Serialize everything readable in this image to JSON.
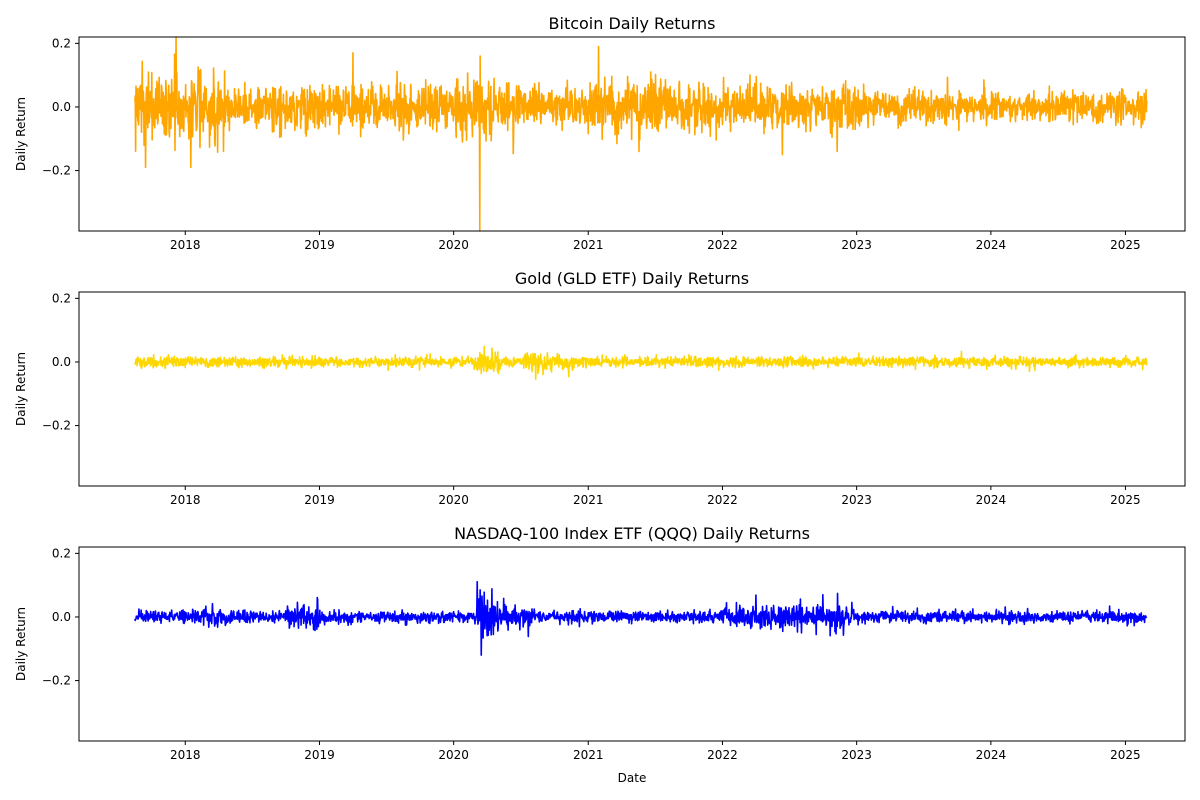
{
  "chart_data": [
    {
      "type": "line",
      "title": "Bitcoin Daily Returns",
      "xlabel": "",
      "ylabel": "Daily Return",
      "xlim": [
        "2017-03-18",
        "2025-06-12"
      ],
      "ylim": [
        -0.39,
        0.22
      ],
      "xticks": [
        "2018",
        "2019",
        "2020",
        "2021",
        "2022",
        "2023",
        "2024",
        "2025"
      ],
      "yticks": [
        "0.2",
        "0.0",
        "−0.2"
      ],
      "x_range": [
        "2017-08-17",
        "2025-02-28"
      ],
      "color": "#FFA500",
      "series": [
        {
          "sample_x": [
            "2017-09-15",
            "2017-12-07",
            "2018-01-16",
            "2018-02-06",
            "2019-04-02",
            "2020-03-12",
            "2020-03-13",
            "2021-01-29",
            "2021-05-19",
            "2022-06-13",
            "2022-11-09"
          ],
          "values": [
            -0.19,
            0.22,
            -0.19,
            0.11,
            0.17,
            -0.39,
            0.16,
            0.19,
            -0.14,
            -0.15,
            -0.14
          ]
        }
      ]
    },
    {
      "type": "line",
      "title": "Gold (GLD ETF) Daily Returns",
      "xlabel": "",
      "ylabel": "Daily Return",
      "xlim": [
        "2017-03-18",
        "2025-06-12"
      ],
      "ylim": [
        -0.39,
        0.22
      ],
      "xticks": [
        "2018",
        "2019",
        "2020",
        "2021",
        "2022",
        "2023",
        "2024",
        "2025"
      ],
      "yticks": [
        "0.2",
        "0.0",
        "−0.2"
      ],
      "x_range": [
        "2017-08-17",
        "2025-02-28"
      ],
      "color": "#FFD700",
      "series": [
        {
          "sample_x": [
            "2020-03-16",
            "2020-03-24",
            "2020-08-11",
            "2020-11-09",
            "2023-10-13",
            "2024-04-15"
          ],
          "values": [
            -0.036,
            0.049,
            -0.054,
            -0.046,
            0.033,
            -0.03
          ]
        }
      ]
    },
    {
      "type": "line",
      "title": "NASDAQ-100 Index ETF (QQQ) Daily Returns",
      "xlabel": "Date",
      "ylabel": "Daily Return",
      "xlim": [
        "2017-03-18",
        "2025-06-12"
      ],
      "ylim": [
        -0.39,
        0.22
      ],
      "xticks": [
        "2018",
        "2019",
        "2020",
        "2021",
        "2022",
        "2023",
        "2024",
        "2025"
      ],
      "yticks": [
        "0.2",
        "0.0",
        "−0.2"
      ],
      "x_range": [
        "2017-08-17",
        "2025-02-28"
      ],
      "color": "#0000FF",
      "series": [
        {
          "sample_x": [
            "2018-12-26",
            "2020-03-13",
            "2020-03-16",
            "2020-03-24",
            "2022-11-10",
            "2022-09-13"
          ],
          "values": [
            0.061,
            0.085,
            -0.12,
            0.078,
            0.074,
            -0.055
          ]
        }
      ]
    }
  ]
}
